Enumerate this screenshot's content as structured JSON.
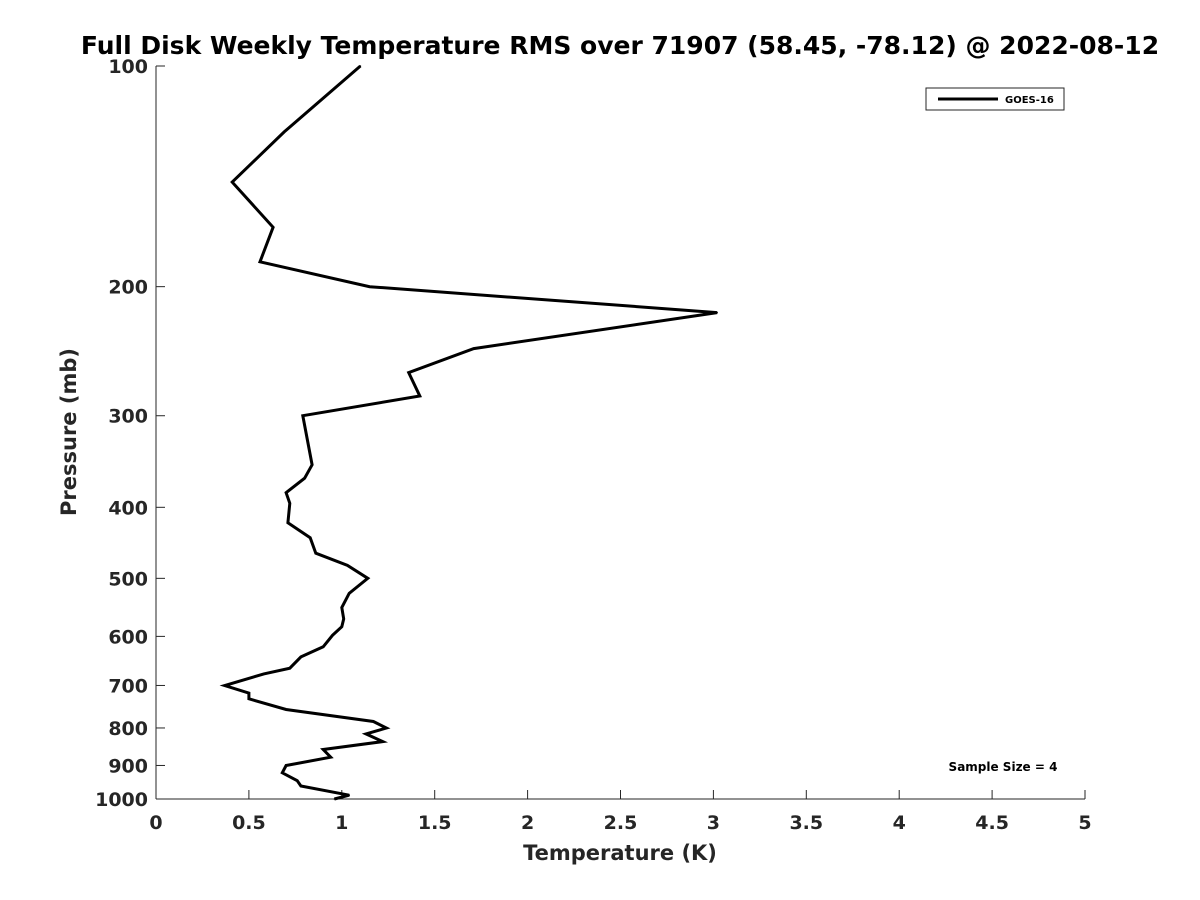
{
  "chart_data": {
    "type": "line",
    "title": "Full Disk Weekly Temperature RMS over 71907 (58.45, -78.12) @ 2022-08-12",
    "xlabel": "Temperature (K)",
    "ylabel": "Pressure (mb)",
    "xlim": [
      0,
      5
    ],
    "ylim": [
      100,
      1000
    ],
    "y_scale": "log",
    "y_reversed": true,
    "x_ticks": [
      "0",
      "0.5",
      "1",
      "1.5",
      "2",
      "2.5",
      "3",
      "3.5",
      "4",
      "4.5",
      "5"
    ],
    "y_ticks": [
      "100",
      "200",
      "300",
      "400",
      "500",
      "600",
      "700",
      "800",
      "900",
      "1000"
    ],
    "grid": false,
    "legend_position": "top-right",
    "series": [
      {
        "name": "GOES-16",
        "color": "#000000",
        "x": [
          1.1,
          0.69,
          0.41,
          0.63,
          0.56,
          1.15,
          3.02,
          1.71,
          1.36,
          1.42,
          0.79,
          0.84,
          0.8,
          0.7,
          0.72,
          0.71,
          0.83,
          0.86,
          1.03,
          1.14,
          1.04,
          1.0,
          1.01,
          1.0,
          0.95,
          0.9,
          0.78,
          0.72,
          0.58,
          0.37,
          0.5,
          0.5,
          0.7,
          1.17,
          1.24,
          1.13,
          1.22,
          0.9,
          0.94,
          0.7,
          0.68,
          0.76,
          0.78,
          1.04,
          0.96
        ],
        "y": [
          100,
          123,
          144,
          166,
          185,
          200,
          217,
          243,
          262,
          282,
          300,
          350,
          365,
          382,
          395,
          420,
          440,
          462,
          480,
          500,
          524,
          548,
          568,
          582,
          598,
          620,
          640,
          663,
          675,
          700,
          717,
          730,
          755,
          784,
          800,
          815,
          835,
          856,
          877,
          900,
          921,
          944,
          960,
          988,
          1000
        ]
      }
    ],
    "annotations": [
      "Sample Size = 4"
    ]
  }
}
